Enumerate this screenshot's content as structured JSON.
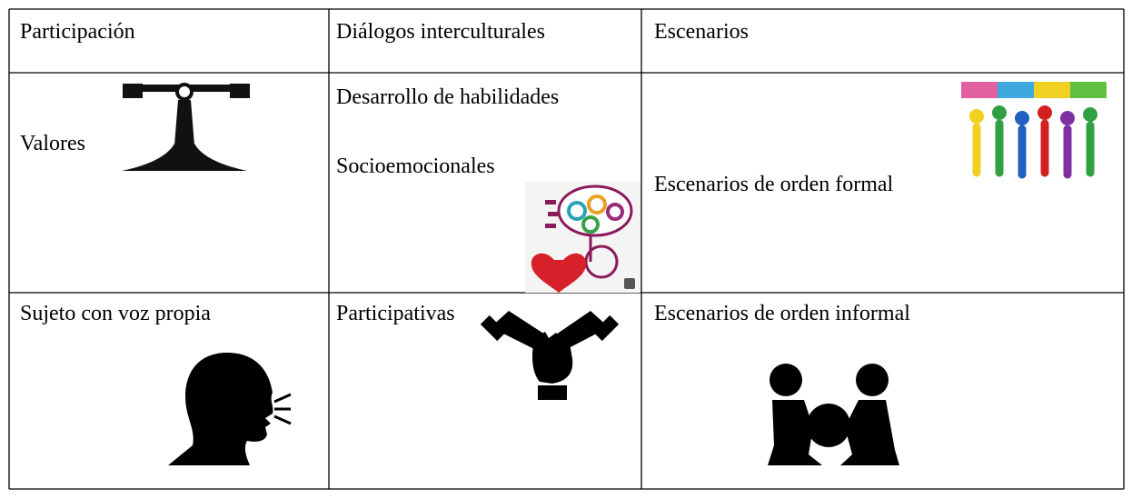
{
  "table": {
    "header": [
      "Participación",
      "Diálogos interculturales",
      "Escenarios"
    ],
    "rows": [
      [
        "Valores",
        [
          "Desarrollo de habilidades",
          "Socioemocionales"
        ],
        "Escenarios de orden formal"
      ],
      [
        "Sujeto con voz propia",
        "Participativas",
        "Escenarios de orden informal"
      ]
    ]
  }
}
